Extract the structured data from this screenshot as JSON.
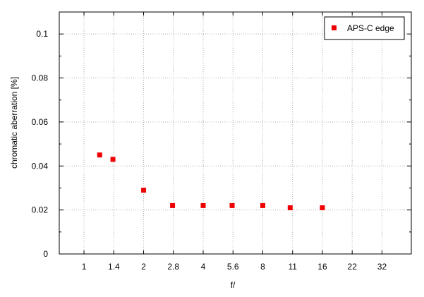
{
  "chart_data": {
    "type": "scatter",
    "title": "",
    "xlabel": "f/",
    "ylabel": "chromatic aberration [%]",
    "x_scale": "log2",
    "x_ticks": [
      "1",
      "1.4",
      "2",
      "2.8",
      "4",
      "5.6",
      "8",
      "11",
      "16",
      "22",
      "32"
    ],
    "xlim": [
      0.75,
      45
    ],
    "y_ticks": [
      "0",
      "0.02",
      "0.04",
      "0.06",
      "0.08",
      "0.1"
    ],
    "ylim": [
      0,
      0.11
    ],
    "grid": true,
    "legend_position": "top-right",
    "series": [
      {
        "name": "APS-C edge",
        "color": "#ee0000",
        "marker": "square",
        "points": [
          {
            "x": 1.2,
            "y": 0.045
          },
          {
            "x": 1.4,
            "y": 0.043
          },
          {
            "x": 2.0,
            "y": 0.029
          },
          {
            "x": 2.8,
            "y": 0.022
          },
          {
            "x": 4.0,
            "y": 0.022
          },
          {
            "x": 5.6,
            "y": 0.022
          },
          {
            "x": 8.0,
            "y": 0.022
          },
          {
            "x": 11.0,
            "y": 0.021
          },
          {
            "x": 16.0,
            "y": 0.021
          }
        ]
      }
    ]
  }
}
